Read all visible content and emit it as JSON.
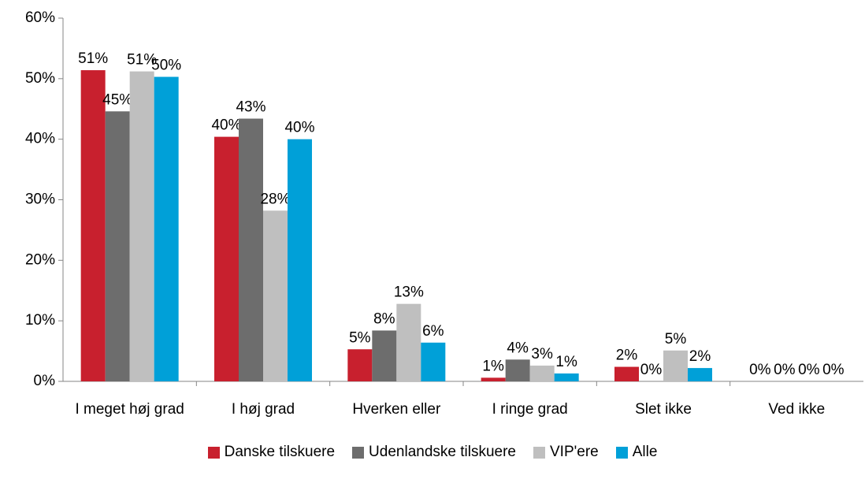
{
  "chart_data": {
    "type": "bar",
    "categories": [
      "I meget høj grad",
      "I høj grad",
      "Hverken eller",
      "I ringe grad",
      "Slet ikke",
      "Ved ikke"
    ],
    "series": [
      {
        "name": "Danske tilskuere",
        "color": "#c8202e",
        "values": [
          51.4,
          40.4,
          5.3,
          0.6,
          2.4,
          0
        ],
        "value_labels": [
          "51%",
          "40%",
          "5%",
          "1%",
          "2%",
          "0%"
        ]
      },
      {
        "name": "Udenlandske tilskuere",
        "color": "#6d6d6d",
        "values": [
          44.6,
          43.4,
          8.4,
          3.6,
          0,
          0
        ],
        "value_labels": [
          "45%",
          "43%",
          "8%",
          "4%",
          "0%",
          "0%"
        ]
      },
      {
        "name": "VIP'ere",
        "color": "#bfbfbf",
        "values": [
          51.2,
          28.2,
          12.8,
          2.6,
          5.1,
          0
        ],
        "value_labels": [
          "51%",
          "28%",
          "13%",
          "3%",
          "5%",
          "0%"
        ]
      },
      {
        "name": "Alle",
        "color": "#00a0d8",
        "values": [
          50.3,
          40.0,
          6.4,
          1.3,
          2.2,
          0
        ],
        "value_labels": [
          "50%",
          "40%",
          "6%",
          "1%",
          "2%",
          "0%"
        ]
      }
    ],
    "ylim": [
      0,
      60
    ],
    "yticks": [
      {
        "value": 0,
        "label": "0%"
      },
      {
        "value": 10,
        "label": "10%"
      },
      {
        "value": 20,
        "label": "20%"
      },
      {
        "value": 30,
        "label": "30%"
      },
      {
        "value": 40,
        "label": "40%"
      },
      {
        "value": 50,
        "label": "50%"
      },
      {
        "value": 60,
        "label": "60%"
      }
    ],
    "legend": "bottom"
  }
}
